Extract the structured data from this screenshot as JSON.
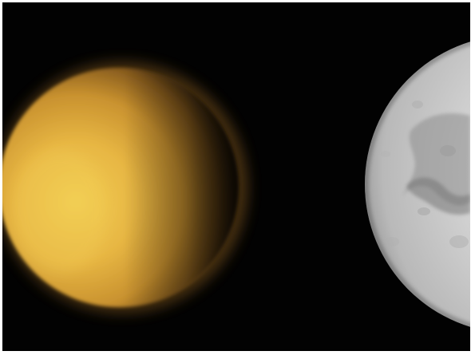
{
  "scene": {
    "background_color": "#020202",
    "frame_color": "#ffffff",
    "left_body": {
      "icon": "hazy-moon",
      "colors": [
        "#f2c84a",
        "#e0a93a",
        "#b7802a",
        "#5a3c14"
      ]
    },
    "right_body": {
      "icon": "cratered-moon",
      "colors": [
        "#dcdcdc",
        "#bdbdbd",
        "#8f8f8f",
        "#5c5c5c"
      ]
    }
  }
}
